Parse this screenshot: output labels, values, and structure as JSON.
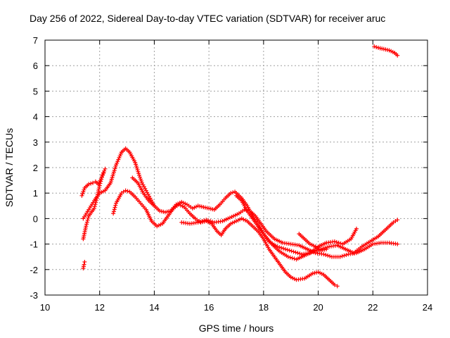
{
  "chart_data": {
    "type": "scatter",
    "title": "Day 256 of 2022, Sidereal Day-to-day VTEC variation (SDTVAR) for receiver aruc",
    "xlabel": "GPS time / hours",
    "ylabel": "SDTVAR / TECUs",
    "xlim": [
      10,
      24
    ],
    "ylim": [
      -3,
      7
    ],
    "xticks": [
      10,
      12,
      14,
      16,
      18,
      20,
      22,
      24
    ],
    "yticks": [
      -3,
      -2,
      -1,
      0,
      1,
      2,
      3,
      4,
      5,
      6,
      7
    ],
    "grid": true,
    "marker": "+",
    "color": "#ff0000",
    "series": [
      {
        "name": "track-a",
        "points": [
          [
            11.4,
            -0.8
          ],
          [
            11.5,
            -0.3
          ],
          [
            11.6,
            0.1
          ],
          [
            11.8,
            0.4
          ],
          [
            11.9,
            0.8
          ],
          [
            12.0,
            1.3
          ],
          [
            12.1,
            1.7
          ],
          [
            12.2,
            1.95
          ]
        ]
      },
      {
        "name": "track-b",
        "points": [
          [
            11.35,
            0.9
          ],
          [
            11.45,
            1.2
          ],
          [
            11.6,
            1.35
          ],
          [
            11.75,
            1.4
          ],
          [
            11.85,
            1.45
          ],
          [
            11.95,
            1.35
          ],
          [
            12.05,
            1.55
          ],
          [
            12.15,
            1.8
          ]
        ]
      },
      {
        "name": "track-c",
        "points": [
          [
            11.4,
            -1.95
          ],
          [
            11.43,
            -1.8
          ],
          [
            11.45,
            -1.7
          ]
        ]
      },
      {
        "name": "track-d",
        "points": [
          [
            11.4,
            0.0
          ],
          [
            11.6,
            0.35
          ],
          [
            11.8,
            0.7
          ],
          [
            12.0,
            1.0
          ],
          [
            12.2,
            1.1
          ],
          [
            12.4,
            1.4
          ],
          [
            12.6,
            2.1
          ],
          [
            12.8,
            2.6
          ],
          [
            12.95,
            2.75
          ],
          [
            13.1,
            2.6
          ],
          [
            13.3,
            2.2
          ],
          [
            13.45,
            1.7
          ],
          [
            13.55,
            1.4
          ],
          [
            13.7,
            1.1
          ],
          [
            13.85,
            0.8
          ],
          [
            14.0,
            0.5
          ],
          [
            14.2,
            0.3
          ],
          [
            14.4,
            0.25
          ],
          [
            14.6,
            0.3
          ],
          [
            14.8,
            0.55
          ],
          [
            15.0,
            0.65
          ],
          [
            15.2,
            0.55
          ],
          [
            15.4,
            0.4
          ],
          [
            15.6,
            0.5
          ],
          [
            15.8,
            0.45
          ],
          [
            16.0,
            0.4
          ],
          [
            16.2,
            0.35
          ],
          [
            16.4,
            0.55
          ],
          [
            16.6,
            0.8
          ],
          [
            16.8,
            1.0
          ],
          [
            16.95,
            1.05
          ],
          [
            17.2,
            0.8
          ],
          [
            17.4,
            0.5
          ],
          [
            17.6,
            0.1
          ],
          [
            17.8,
            -0.25
          ],
          [
            18.0,
            -0.6
          ],
          [
            18.3,
            -1.0
          ],
          [
            18.6,
            -1.3
          ],
          [
            18.9,
            -1.5
          ],
          [
            19.2,
            -1.6
          ],
          [
            19.5,
            -1.45
          ],
          [
            19.8,
            -1.3
          ],
          [
            20.1,
            -1.2
          ],
          [
            20.4,
            -1.1
          ],
          [
            20.7,
            -1.05
          ],
          [
            21.0,
            -1.2
          ],
          [
            21.3,
            -1.35
          ],
          [
            21.6,
            -1.1
          ],
          [
            21.9,
            -0.9
          ],
          [
            22.2,
            -0.7
          ],
          [
            22.5,
            -0.4
          ],
          [
            22.75,
            -0.15
          ],
          [
            22.9,
            -0.05
          ]
        ]
      },
      {
        "name": "track-e",
        "points": [
          [
            12.5,
            0.2
          ],
          [
            12.6,
            0.6
          ],
          [
            12.8,
            1.0
          ],
          [
            12.95,
            1.1
          ],
          [
            13.1,
            1.05
          ],
          [
            13.3,
            0.85
          ],
          [
            13.5,
            0.6
          ],
          [
            13.7,
            0.35
          ],
          [
            13.9,
            -0.1
          ],
          [
            14.1,
            -0.3
          ],
          [
            14.3,
            -0.2
          ],
          [
            14.5,
            0.1
          ],
          [
            14.7,
            0.4
          ],
          [
            14.9,
            0.55
          ],
          [
            15.1,
            0.45
          ],
          [
            15.3,
            0.2
          ],
          [
            15.5,
            0.0
          ],
          [
            15.7,
            -0.15
          ],
          [
            15.9,
            -0.1
          ],
          [
            16.1,
            -0.2
          ],
          [
            16.3,
            -0.5
          ],
          [
            16.45,
            -0.65
          ],
          [
            16.6,
            -0.4
          ],
          [
            16.8,
            -0.2
          ],
          [
            17.0,
            -0.1
          ],
          [
            17.2,
            0.0
          ],
          [
            17.4,
            -0.1
          ],
          [
            17.6,
            -0.3
          ],
          [
            17.8,
            -0.5
          ],
          [
            18.0,
            -0.8
          ],
          [
            18.2,
            -1.2
          ],
          [
            18.4,
            -1.5
          ],
          [
            18.6,
            -1.8
          ],
          [
            18.8,
            -2.1
          ],
          [
            19.0,
            -2.3
          ],
          [
            19.2,
            -2.4
          ],
          [
            19.5,
            -2.35
          ],
          [
            19.8,
            -2.15
          ],
          [
            20.0,
            -2.1
          ],
          [
            20.2,
            -2.2
          ],
          [
            20.4,
            -2.4
          ],
          [
            20.6,
            -2.6
          ],
          [
            20.7,
            -2.65
          ]
        ]
      },
      {
        "name": "track-f",
        "points": [
          [
            13.2,
            1.6
          ],
          [
            13.4,
            1.4
          ],
          [
            13.6,
            1.0
          ],
          [
            13.8,
            0.7
          ],
          [
            14.0,
            0.5
          ]
        ]
      },
      {
        "name": "track-g",
        "points": [
          [
            15.0,
            -0.15
          ],
          [
            15.3,
            -0.2
          ],
          [
            15.6,
            -0.15
          ],
          [
            15.9,
            -0.05
          ],
          [
            16.2,
            -0.15
          ],
          [
            16.5,
            -0.1
          ],
          [
            16.7,
            0.0
          ],
          [
            16.9,
            0.1
          ],
          [
            17.1,
            0.2
          ],
          [
            17.3,
            0.35
          ],
          [
            17.5,
            0.3
          ],
          [
            17.7,
            0.1
          ],
          [
            17.9,
            -0.2
          ],
          [
            18.1,
            -0.5
          ],
          [
            18.4,
            -0.8
          ],
          [
            18.7,
            -0.95
          ],
          [
            19.0,
            -1.0
          ],
          [
            19.3,
            -1.05
          ],
          [
            19.6,
            -1.2
          ],
          [
            19.9,
            -1.35
          ],
          [
            20.2,
            -1.4
          ],
          [
            20.5,
            -1.5
          ],
          [
            20.8,
            -1.5
          ],
          [
            21.1,
            -1.4
          ],
          [
            21.4,
            -1.35
          ],
          [
            21.7,
            -1.2
          ],
          [
            22.0,
            -1.0
          ],
          [
            22.3,
            -0.95
          ],
          [
            22.6,
            -0.95
          ],
          [
            22.9,
            -1.0
          ]
        ]
      },
      {
        "name": "track-h",
        "points": [
          [
            17.0,
            0.9
          ],
          [
            17.2,
            0.7
          ],
          [
            17.4,
            0.3
          ],
          [
            17.6,
            0.0
          ],
          [
            17.8,
            -0.3
          ],
          [
            18.0,
            -0.6
          ],
          [
            18.2,
            -0.9
          ],
          [
            18.5,
            -1.1
          ],
          [
            18.8,
            -1.2
          ],
          [
            19.1,
            -1.3
          ],
          [
            19.4,
            -1.4
          ],
          [
            19.7,
            -1.35
          ],
          [
            20.0,
            -1.1
          ],
          [
            20.3,
            -0.95
          ],
          [
            20.6,
            -0.9
          ],
          [
            20.9,
            -1.0
          ],
          [
            21.2,
            -0.8
          ],
          [
            21.4,
            -0.4
          ]
        ]
      },
      {
        "name": "track-i",
        "points": [
          [
            19.3,
            -0.6
          ],
          [
            19.5,
            -0.8
          ],
          [
            19.7,
            -1.0
          ],
          [
            19.9,
            -1.1
          ],
          [
            20.1,
            -1.25
          ],
          [
            20.3,
            -1.2
          ]
        ]
      },
      {
        "name": "track-j",
        "points": [
          [
            22.05,
            6.75
          ],
          [
            22.2,
            6.7
          ],
          [
            22.4,
            6.65
          ],
          [
            22.6,
            6.6
          ],
          [
            22.8,
            6.5
          ],
          [
            22.9,
            6.4
          ]
        ]
      }
    ]
  }
}
